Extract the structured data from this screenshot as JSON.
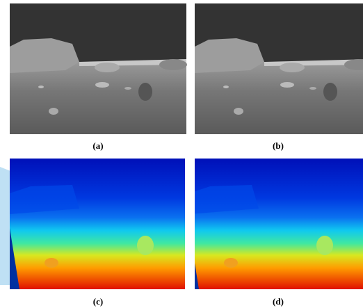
{
  "figure": {
    "panels": [
      {
        "label": "(a)"
      },
      {
        "label": "(b)"
      },
      {
        "label": "(c)"
      },
      {
        "label": "(d)"
      }
    ]
  }
}
